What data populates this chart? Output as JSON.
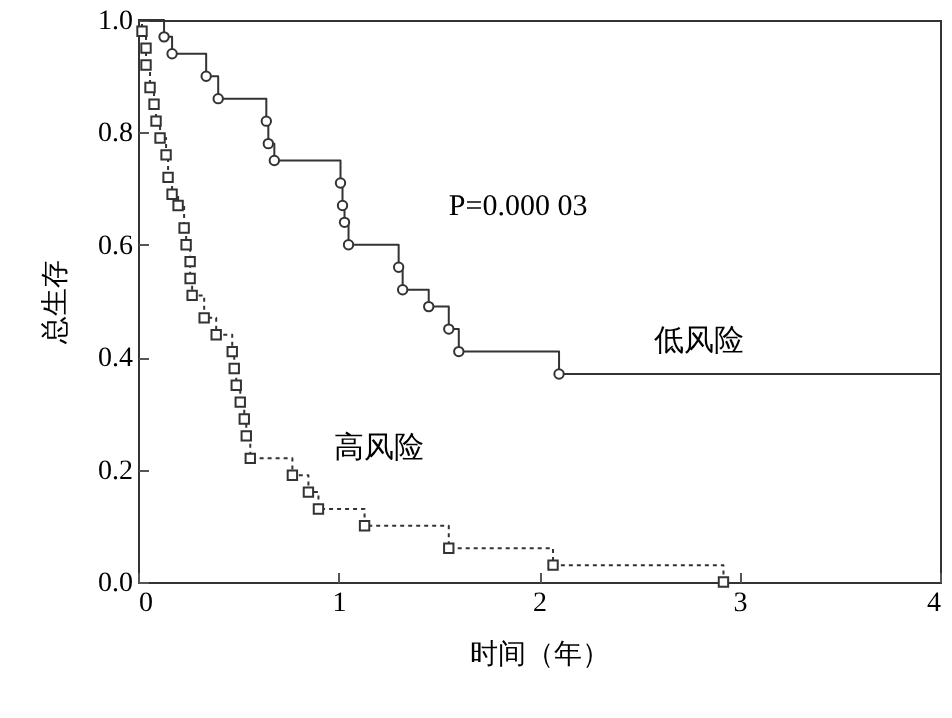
{
  "chart_data": {
    "type": "step",
    "xlabel": "时间（年）",
    "ylabel": "总生存",
    "annotations": [
      "P=0.000 03"
    ],
    "xlim": [
      0,
      4
    ],
    "xticks": [
      0,
      1,
      2,
      3,
      4
    ],
    "ylim": [
      0,
      1
    ],
    "yticks": [
      {
        "value": 0,
        "label": "0.0"
      },
      {
        "value": 0.2,
        "label": "0.2"
      },
      {
        "value": 0.4,
        "label": "0.4"
      },
      {
        "value": 0.6,
        "label": "0.6"
      },
      {
        "value": 0.8,
        "label": "0.8"
      },
      {
        "value": 1,
        "label": "1.0"
      }
    ],
    "series": [
      {
        "name": "低风险",
        "color": "#333333",
        "marker": "circle",
        "line_style": "solid",
        "x": [
          0,
          0.13,
          0.17,
          0.34,
          0.4,
          0.64,
          0.65,
          0.68,
          1.01,
          1.02,
          1.03,
          1.05,
          1.3,
          1.32,
          1.45,
          1.55,
          1.6,
          2.1,
          4.0
        ],
        "values": [
          1.0,
          0.97,
          0.94,
          0.9,
          0.86,
          0.82,
          0.78,
          0.75,
          0.71,
          0.67,
          0.64,
          0.6,
          0.56,
          0.52,
          0.49,
          0.45,
          0.41,
          0.37,
          0.37
        ]
      },
      {
        "name": "高风险",
        "color": "#333333",
        "marker": "square",
        "line_style": "dotted",
        "x": [
          0,
          0.02,
          0.04,
          0.04,
          0.06,
          0.08,
          0.09,
          0.11,
          0.14,
          0.15,
          0.17,
          0.2,
          0.23,
          0.24,
          0.26,
          0.26,
          0.27,
          0.33,
          0.39,
          0.47,
          0.48,
          0.49,
          0.51,
          0.53,
          0.54,
          0.56,
          0.77,
          0.85,
          0.9,
          1.13,
          1.55,
          2.07,
          2.92
        ],
        "values": [
          1.0,
          0.98,
          0.95,
          0.92,
          0.88,
          0.85,
          0.82,
          0.79,
          0.76,
          0.72,
          0.69,
          0.67,
          0.63,
          0.6,
          0.57,
          0.54,
          0.51,
          0.47,
          0.44,
          0.41,
          0.38,
          0.35,
          0.32,
          0.29,
          0.26,
          0.22,
          0.19,
          0.16,
          0.13,
          0.1,
          0.06,
          0.03,
          0.0
        ]
      }
    ]
  }
}
